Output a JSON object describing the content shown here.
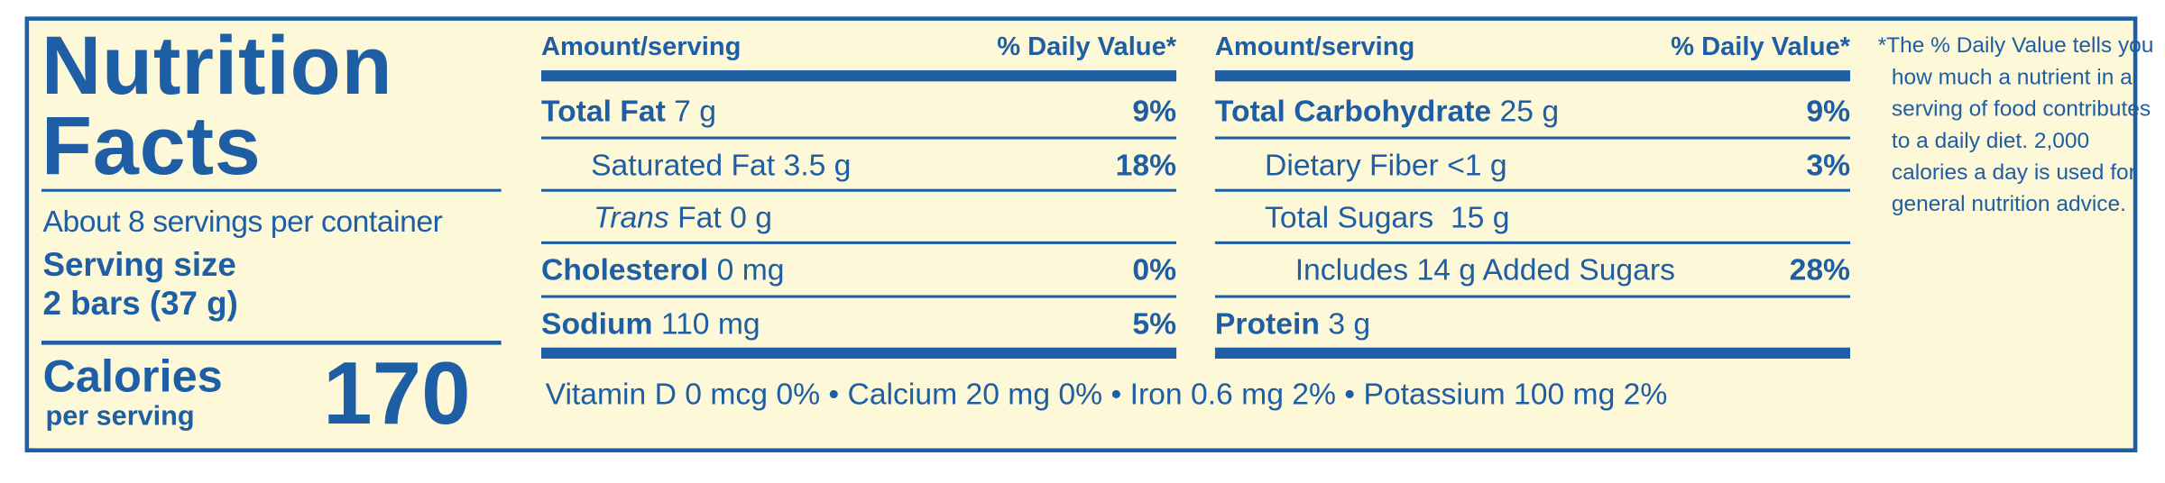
{
  "title": [
    "Nutrition",
    "Facts"
  ],
  "servings_per_container": "About 8 servings per container",
  "serving_size_label": "Serving size",
  "serving_size": "2 bars (37 g)",
  "calories_label": "Calories",
  "calories_sub": "per serving",
  "calories": 170,
  "columns": [
    {
      "header": {
        "amount": "Amount/serving",
        "dv": "% Daily Value*"
      },
      "rows": [
        {
          "name": "Total Fat",
          "amount": "7 g",
          "dv": "9%"
        },
        {
          "name": "Saturated Fat",
          "amount": "3.5 g",
          "dv": "18%"
        },
        {
          "name_prefix": "Trans",
          "name": "Fat",
          "amount": "0 g"
        },
        {
          "name": "Cholesterol",
          "amount": "0 mg",
          "dv": "0%"
        },
        {
          "name": "Sodium",
          "amount": "110 mg",
          "dv": "5%"
        }
      ]
    },
    {
      "header": {
        "amount": "Amount/serving",
        "dv": "% Daily Value*"
      },
      "rows": [
        {
          "name": "Total Carbohydrate",
          "amount": "25 g",
          "dv": "9%"
        },
        {
          "name": "Dietary Fiber",
          "amount": "<1 g",
          "dv": "3%"
        },
        {
          "name": "Total Sugars",
          "amount": "15 g"
        },
        {
          "name": "Includes 14 g Added Sugars",
          "dv": "28%"
        },
        {
          "name": "Protein",
          "amount": "3 g"
        }
      ]
    }
  ],
  "vitamins_minerals": "Vitamin D 0 mcg 0% • Calcium 20 mg 0% • Iron 0.6 mg 2% • Potassium 100 mg 2%",
  "footnote": "*The % Daily Value tells you how much a nutrient in a serving of food contributes to a daily diet. 2,000 calories a day is used for general nutrition advice."
}
